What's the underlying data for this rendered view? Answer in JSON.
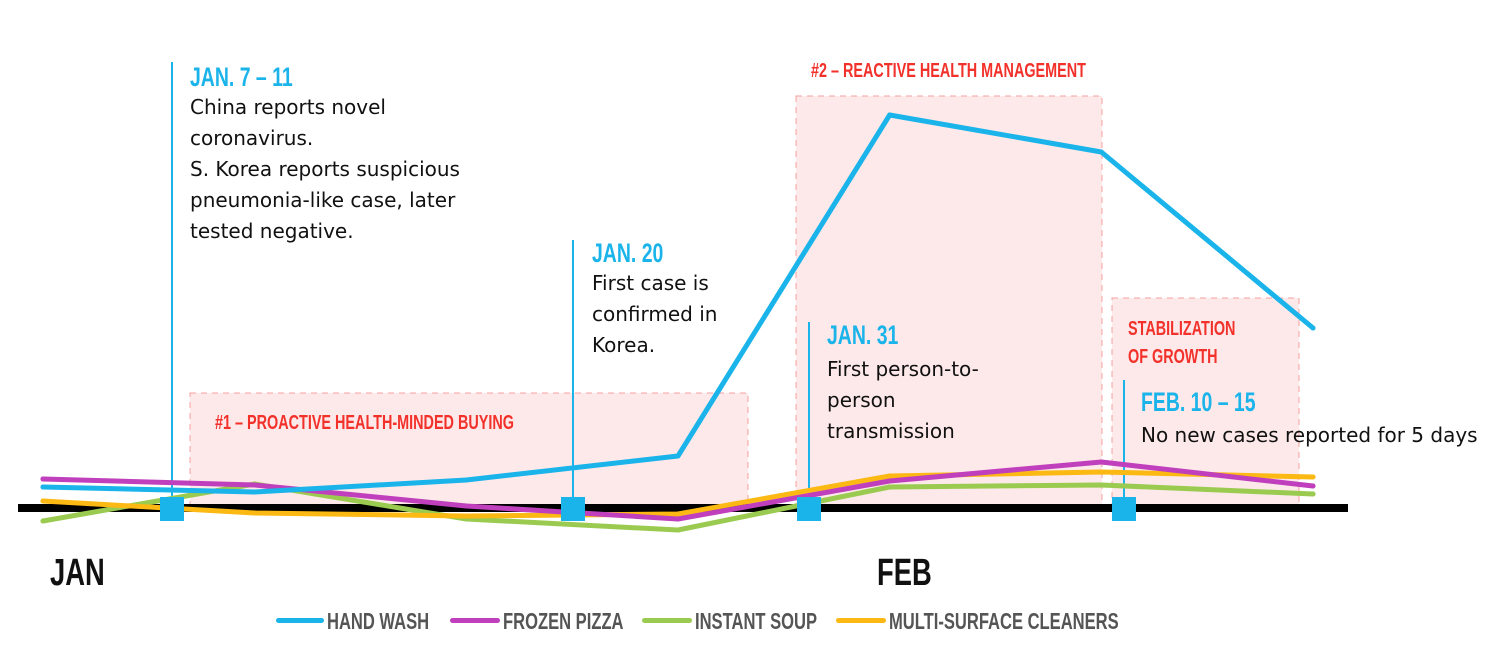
{
  "chart_data": {
    "type": "line",
    "title": "",
    "xlabel": "",
    "ylabel": "",
    "x_tick_labels": [
      "JAN",
      "FEB"
    ],
    "x": [
      1,
      2,
      3,
      4,
      5,
      6,
      7
    ],
    "ylim": [
      -45,
      420
    ],
    "grid": false,
    "legend_position": "bottom",
    "series": [
      {
        "name": "HAND WASH",
        "color": "#1ab4ea",
        "values": [
          21,
          16,
          28,
          52,
          393,
          356,
          180
        ]
      },
      {
        "name": "FROZEN PIZZA",
        "color": "#c03fbd",
        "values": [
          29,
          23,
          2,
          -11,
          27,
          46,
          22
        ]
      },
      {
        "name": "INSTANT SOUP",
        "color": "#9acb50",
        "values": [
          -13,
          24,
          -11,
          -22,
          21,
          23,
          14
        ]
      },
      {
        "name": "MULTI-SURFACE CLEANERS",
        "color": "#fcb813",
        "values": [
          7,
          -5,
          -8,
          -6,
          32,
          36,
          31
        ]
      }
    ],
    "phases": [
      {
        "label": "#1 – PROACTIVE HEALTH-MINDED BUYING"
      },
      {
        "label": "#2 – REACTIVE HEALTH MANAGEMENT"
      },
      {
        "label_line1": "STABILIZATION",
        "label_line2": "OF GROWTH"
      }
    ],
    "events": [
      {
        "date": "JAN. 7 – 11",
        "text": [
          "China reports novel",
          "coronavirus.",
          "S. Korea reports suspicious",
          "pneumonia-like case, later",
          "tested negative."
        ]
      },
      {
        "date": "JAN. 20",
        "text": [
          "First case is",
          "confirmed in",
          "Korea."
        ]
      },
      {
        "date": "JAN. 31",
        "text": [
          "First person-to-",
          "person",
          "transmission"
        ]
      },
      {
        "date": "FEB. 10 – 15",
        "text": [
          "No new cases reported for 5 days"
        ]
      }
    ]
  }
}
